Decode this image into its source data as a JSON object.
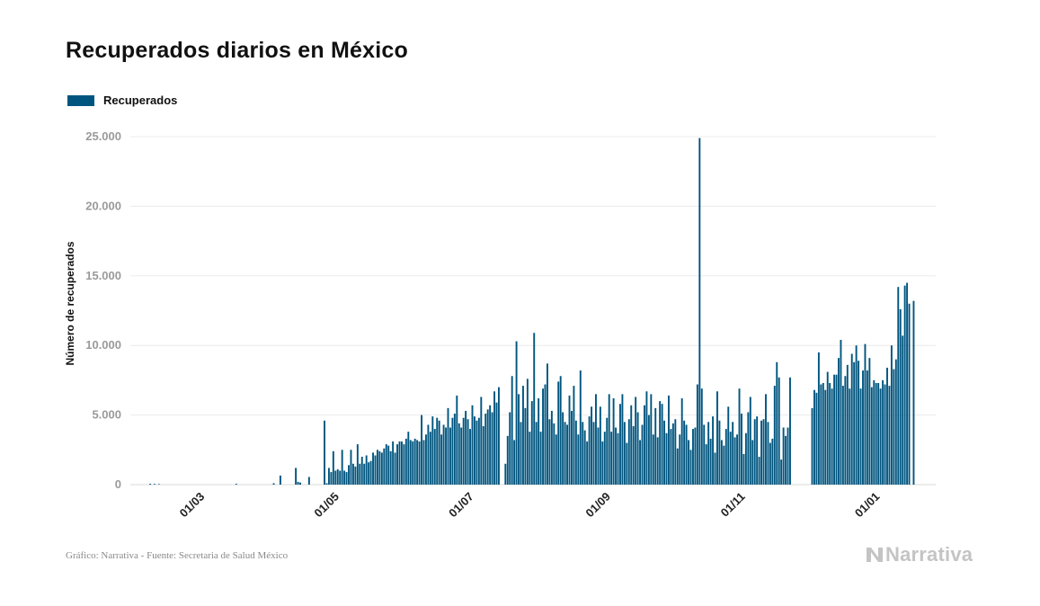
{
  "title": "Recuperados diarios en México",
  "legend": {
    "label": "Recuperados",
    "color": "#00557f"
  },
  "footer": "Gráfico: Narrativa - Fuente: Secretaria de Salud México",
  "logo": {
    "text": "Narrativa",
    "icon": "narrativa-n-icon"
  },
  "chart_data": {
    "type": "bar",
    "ylabel": "Número de recuperados",
    "ylim": [
      0,
      25000
    ],
    "y_ticks": [
      0,
      5000,
      10000,
      15000,
      20000,
      25000
    ],
    "y_tick_labels": [
      "0",
      "5.000",
      "10.000",
      "15.000",
      "20.000",
      "25.000"
    ],
    "x_range": [
      "2020-02-01",
      "2021-01-31"
    ],
    "x_ticks": [
      {
        "date": "2020-03-01",
        "label": "01/03"
      },
      {
        "date": "2020-05-01",
        "label": "01/05"
      },
      {
        "date": "2020-07-01",
        "label": "01/07"
      },
      {
        "date": "2020-09-01",
        "label": "01/09"
      },
      {
        "date": "2020-11-01",
        "label": "01/11"
      },
      {
        "date": "2021-01-01",
        "label": "01/01"
      }
    ],
    "grid": true,
    "legend_position": "top-left",
    "bar_color": "#00557f",
    "series": [
      {
        "name": "Recuperados",
        "points": [
          [
            "2020-02-10",
            60
          ],
          [
            "2020-02-12",
            50
          ],
          [
            "2020-02-14",
            40
          ],
          [
            "2020-03-20",
            60
          ],
          [
            "2020-04-06",
            100
          ],
          [
            "2020-04-09",
            650
          ],
          [
            "2020-04-16",
            1200
          ],
          [
            "2020-04-17",
            200
          ],
          [
            "2020-04-18",
            150
          ],
          [
            "2020-04-22",
            550
          ],
          [
            "2020-04-29",
            4600
          ],
          [
            "2020-04-30",
            100
          ],
          [
            "2020-05-01",
            1200
          ],
          [
            "2020-05-02",
            900
          ],
          [
            "2020-05-03",
            2400
          ],
          [
            "2020-05-04",
            1000
          ],
          [
            "2020-05-05",
            1100
          ],
          [
            "2020-05-06",
            1000
          ],
          [
            "2020-05-07",
            2500
          ],
          [
            "2020-05-08",
            1000
          ],
          [
            "2020-05-09",
            900
          ],
          [
            "2020-05-10",
            1400
          ],
          [
            "2020-05-11",
            2500
          ],
          [
            "2020-05-12",
            1500
          ],
          [
            "2020-05-13",
            1300
          ],
          [
            "2020-05-14",
            2900
          ],
          [
            "2020-05-15",
            1500
          ],
          [
            "2020-05-16",
            2000
          ],
          [
            "2020-05-17",
            1500
          ],
          [
            "2020-05-18",
            2100
          ],
          [
            "2020-05-19",
            1600
          ],
          [
            "2020-05-20",
            1700
          ],
          [
            "2020-05-21",
            2300
          ],
          [
            "2020-05-22",
            2100
          ],
          [
            "2020-05-23",
            2500
          ],
          [
            "2020-05-24",
            2400
          ],
          [
            "2020-05-25",
            2300
          ],
          [
            "2020-05-26",
            2600
          ],
          [
            "2020-05-27",
            2900
          ],
          [
            "2020-05-28",
            2800
          ],
          [
            "2020-05-29",
            2400
          ],
          [
            "2020-05-30",
            3100
          ],
          [
            "2020-05-31",
            2300
          ],
          [
            "2020-06-01",
            2900
          ],
          [
            "2020-06-02",
            3100
          ],
          [
            "2020-06-03",
            3100
          ],
          [
            "2020-06-04",
            2900
          ],
          [
            "2020-06-05",
            3300
          ],
          [
            "2020-06-06",
            3800
          ],
          [
            "2020-06-07",
            3200
          ],
          [
            "2020-06-08",
            3100
          ],
          [
            "2020-06-09",
            3300
          ],
          [
            "2020-06-10",
            3200
          ],
          [
            "2020-06-11",
            3100
          ],
          [
            "2020-06-12",
            5000
          ],
          [
            "2020-06-13",
            3200
          ],
          [
            "2020-06-14",
            3600
          ],
          [
            "2020-06-15",
            4300
          ],
          [
            "2020-06-16",
            3800
          ],
          [
            "2020-06-17",
            4900
          ],
          [
            "2020-06-18",
            4000
          ],
          [
            "2020-06-19",
            4800
          ],
          [
            "2020-06-20",
            4600
          ],
          [
            "2020-06-21",
            3600
          ],
          [
            "2020-06-22",
            4300
          ],
          [
            "2020-06-23",
            4100
          ],
          [
            "2020-06-24",
            5500
          ],
          [
            "2020-06-25",
            4100
          ],
          [
            "2020-06-26",
            4800
          ],
          [
            "2020-06-27",
            5100
          ],
          [
            "2020-06-28",
            6400
          ],
          [
            "2020-06-29",
            4400
          ],
          [
            "2020-06-30",
            4100
          ],
          [
            "2020-07-01",
            4800
          ],
          [
            "2020-07-02",
            5300
          ],
          [
            "2020-07-03",
            4700
          ],
          [
            "2020-07-04",
            4000
          ],
          [
            "2020-07-05",
            5700
          ],
          [
            "2020-07-06",
            4900
          ],
          [
            "2020-07-07",
            4600
          ],
          [
            "2020-07-08",
            4800
          ],
          [
            "2020-07-09",
            6300
          ],
          [
            "2020-07-10",
            4200
          ],
          [
            "2020-07-11",
            5100
          ],
          [
            "2020-07-12",
            5400
          ],
          [
            "2020-07-13",
            5700
          ],
          [
            "2020-07-14",
            5200
          ],
          [
            "2020-07-15",
            6700
          ],
          [
            "2020-07-16",
            5900
          ],
          [
            "2020-07-17",
            7000
          ],
          [
            "2020-07-20",
            1500
          ],
          [
            "2020-07-21",
            3500
          ],
          [
            "2020-07-22",
            5200
          ],
          [
            "2020-07-23",
            7800
          ],
          [
            "2020-07-24",
            3200
          ],
          [
            "2020-07-25",
            10300
          ],
          [
            "2020-07-26",
            6500
          ],
          [
            "2020-07-27",
            4500
          ],
          [
            "2020-07-28",
            7100
          ],
          [
            "2020-07-29",
            5500
          ],
          [
            "2020-07-30",
            7600
          ],
          [
            "2020-07-31",
            3800
          ],
          [
            "2020-08-01",
            6000
          ],
          [
            "2020-08-02",
            10900
          ],
          [
            "2020-08-03",
            4500
          ],
          [
            "2020-08-04",
            6200
          ],
          [
            "2020-08-05",
            3800
          ],
          [
            "2020-08-06",
            6900
          ],
          [
            "2020-08-07",
            7200
          ],
          [
            "2020-08-08",
            8700
          ],
          [
            "2020-08-09",
            4700
          ],
          [
            "2020-08-10",
            5300
          ],
          [
            "2020-08-11",
            4400
          ],
          [
            "2020-08-12",
            3600
          ],
          [
            "2020-08-13",
            7400
          ],
          [
            "2020-08-14",
            7800
          ],
          [
            "2020-08-15",
            5200
          ],
          [
            "2020-08-16",
            4500
          ],
          [
            "2020-08-17",
            4300
          ],
          [
            "2020-08-18",
            6400
          ],
          [
            "2020-08-19",
            5300
          ],
          [
            "2020-08-20",
            7100
          ],
          [
            "2020-08-21",
            4600
          ],
          [
            "2020-08-22",
            3600
          ],
          [
            "2020-08-23",
            8200
          ],
          [
            "2020-08-24",
            4500
          ],
          [
            "2020-08-25",
            3900
          ],
          [
            "2020-08-26",
            3100
          ],
          [
            "2020-08-27",
            4900
          ],
          [
            "2020-08-28",
            5600
          ],
          [
            "2020-08-29",
            4500
          ],
          [
            "2020-08-30",
            6500
          ],
          [
            "2020-08-31",
            4100
          ],
          [
            "2020-09-01",
            5600
          ],
          [
            "2020-09-02",
            3100
          ],
          [
            "2020-09-03",
            3800
          ],
          [
            "2020-09-04",
            4800
          ],
          [
            "2020-09-05",
            6500
          ],
          [
            "2020-09-06",
            3800
          ],
          [
            "2020-09-07",
            6200
          ],
          [
            "2020-09-08",
            4100
          ],
          [
            "2020-09-09",
            3700
          ],
          [
            "2020-09-10",
            5800
          ],
          [
            "2020-09-11",
            6500
          ],
          [
            "2020-09-12",
            4500
          ],
          [
            "2020-09-13",
            3000
          ],
          [
            "2020-09-14",
            4700
          ],
          [
            "2020-09-15",
            5700
          ],
          [
            "2020-09-16",
            4200
          ],
          [
            "2020-09-17",
            6300
          ],
          [
            "2020-09-18",
            5200
          ],
          [
            "2020-09-19",
            3200
          ],
          [
            "2020-09-20",
            4300
          ],
          [
            "2020-09-21",
            5700
          ],
          [
            "2020-09-22",
            6700
          ],
          [
            "2020-09-23",
            5000
          ],
          [
            "2020-09-24",
            6500
          ],
          [
            "2020-09-25",
            3600
          ],
          [
            "2020-09-26",
            5500
          ],
          [
            "2020-09-27",
            3400
          ],
          [
            "2020-09-28",
            6000
          ],
          [
            "2020-09-29",
            5800
          ],
          [
            "2020-09-30",
            4600
          ],
          [
            "2020-10-01",
            3700
          ],
          [
            "2020-10-02",
            6400
          ],
          [
            "2020-10-03",
            4000
          ],
          [
            "2020-10-04",
            4400
          ],
          [
            "2020-10-05",
            4700
          ],
          [
            "2020-10-06",
            2600
          ],
          [
            "2020-10-07",
            3600
          ],
          [
            "2020-10-08",
            6200
          ],
          [
            "2020-10-09",
            4600
          ],
          [
            "2020-10-10",
            4300
          ],
          [
            "2020-10-11",
            3200
          ],
          [
            "2020-10-12",
            2500
          ],
          [
            "2020-10-13",
            4000
          ],
          [
            "2020-10-14",
            4100
          ],
          [
            "2020-10-15",
            7200
          ],
          [
            "2020-10-16",
            24900
          ],
          [
            "2020-10-17",
            6900
          ],
          [
            "2020-10-18",
            4300
          ],
          [
            "2020-10-19",
            2900
          ],
          [
            "2020-10-20",
            4500
          ],
          [
            "2020-10-21",
            3300
          ],
          [
            "2020-10-22",
            4900
          ],
          [
            "2020-10-23",
            2300
          ],
          [
            "2020-10-24",
            6700
          ],
          [
            "2020-10-25",
            4600
          ],
          [
            "2020-10-26",
            3200
          ],
          [
            "2020-10-27",
            2800
          ],
          [
            "2020-10-28",
            4000
          ],
          [
            "2020-10-29",
            5600
          ],
          [
            "2020-10-30",
            3800
          ],
          [
            "2020-10-31",
            4500
          ],
          [
            "2020-11-01",
            3400
          ],
          [
            "2020-11-02",
            3600
          ],
          [
            "2020-11-03",
            6900
          ],
          [
            "2020-11-04",
            5100
          ],
          [
            "2020-11-05",
            2200
          ],
          [
            "2020-11-06",
            3700
          ],
          [
            "2020-11-07",
            5200
          ],
          [
            "2020-11-08",
            6300
          ],
          [
            "2020-11-09",
            3200
          ],
          [
            "2020-11-10",
            4700
          ],
          [
            "2020-11-11",
            4900
          ],
          [
            "2020-11-12",
            2000
          ],
          [
            "2020-11-13",
            4600
          ],
          [
            "2020-11-14",
            4700
          ],
          [
            "2020-11-15",
            6500
          ],
          [
            "2020-11-16",
            4500
          ],
          [
            "2020-11-17",
            3000
          ],
          [
            "2020-11-18",
            3300
          ],
          [
            "2020-11-19",
            7100
          ],
          [
            "2020-11-20",
            8800
          ],
          [
            "2020-11-21",
            7700
          ],
          [
            "2020-11-22",
            1800
          ],
          [
            "2020-11-23",
            4100
          ],
          [
            "2020-11-24",
            3500
          ],
          [
            "2020-11-25",
            4100
          ],
          [
            "2020-11-26",
            7700
          ],
          [
            "2020-12-06",
            5500
          ],
          [
            "2020-12-07",
            6800
          ],
          [
            "2020-12-08",
            6600
          ],
          [
            "2020-12-09",
            9500
          ],
          [
            "2020-12-10",
            7200
          ],
          [
            "2020-12-11",
            7300
          ],
          [
            "2020-12-12",
            6800
          ],
          [
            "2020-12-13",
            8100
          ],
          [
            "2020-12-14",
            7300
          ],
          [
            "2020-12-15",
            6900
          ],
          [
            "2020-12-16",
            7900
          ],
          [
            "2020-12-17",
            7900
          ],
          [
            "2020-12-18",
            9100
          ],
          [
            "2020-12-19",
            10400
          ],
          [
            "2020-12-20",
            7100
          ],
          [
            "2020-12-21",
            7800
          ],
          [
            "2020-12-22",
            8600
          ],
          [
            "2020-12-23",
            6900
          ],
          [
            "2020-12-24",
            9400
          ],
          [
            "2020-12-25",
            8800
          ],
          [
            "2020-12-26",
            10000
          ],
          [
            "2020-12-27",
            8900
          ],
          [
            "2020-12-28",
            6900
          ],
          [
            "2020-12-29",
            8200
          ],
          [
            "2020-12-30",
            10100
          ],
          [
            "2020-12-31",
            8200
          ],
          [
            "2021-01-01",
            9100
          ],
          [
            "2021-01-02",
            7000
          ],
          [
            "2021-01-03",
            7500
          ],
          [
            "2021-01-04",
            7300
          ],
          [
            "2021-01-05",
            7300
          ],
          [
            "2021-01-06",
            6900
          ],
          [
            "2021-01-07",
            7500
          ],
          [
            "2021-01-08",
            7200
          ],
          [
            "2021-01-09",
            8400
          ],
          [
            "2021-01-10",
            7100
          ],
          [
            "2021-01-11",
            10000
          ],
          [
            "2021-01-12",
            8300
          ],
          [
            "2021-01-13",
            9000
          ],
          [
            "2021-01-14",
            14200
          ],
          [
            "2021-01-15",
            12600
          ],
          [
            "2021-01-16",
            10700
          ],
          [
            "2021-01-17",
            14300
          ],
          [
            "2021-01-18",
            14500
          ],
          [
            "2021-01-19",
            13000
          ],
          [
            "2021-01-21",
            13200
          ]
        ]
      }
    ]
  }
}
